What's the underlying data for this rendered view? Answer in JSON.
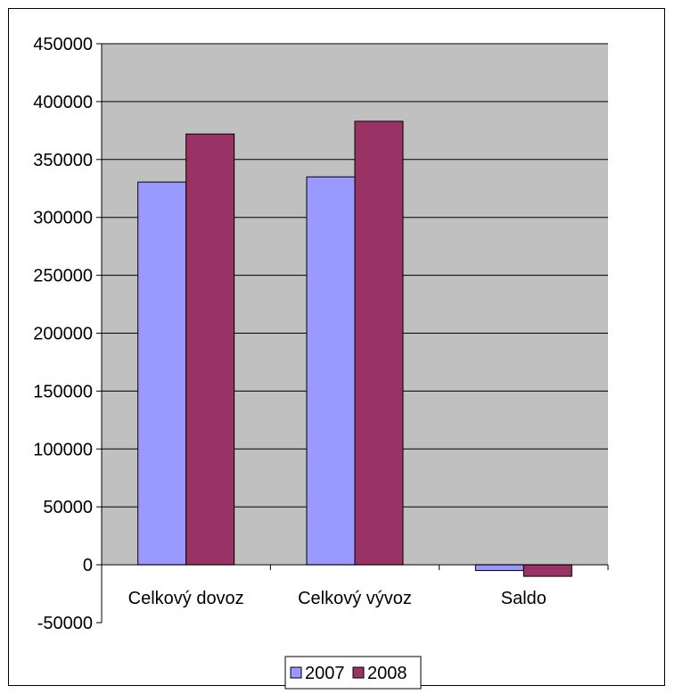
{
  "chart_data": {
    "type": "bar",
    "title": "",
    "xlabel": "",
    "ylabel": "",
    "categories": [
      "Celkový dovoz",
      "Celkový vývoz",
      "Saldo"
    ],
    "series": [
      {
        "name": "2007",
        "values": [
          330500,
          335000,
          -5000
        ],
        "color": "#9999ff"
      },
      {
        "name": "2008",
        "values": [
          372000,
          383000,
          -10000
        ],
        "color": "#993366"
      }
    ],
    "ylim": [
      -50000,
      450000
    ],
    "yticks": [
      -50000,
      0,
      50000,
      100000,
      150000,
      200000,
      250000,
      300000,
      350000,
      400000,
      450000
    ],
    "ytick_labels": [
      "-50000",
      "0",
      "50000",
      "100000",
      "150000",
      "200000",
      "250000",
      "300000",
      "350000",
      "400000",
      "450000"
    ],
    "grid": true,
    "plot_background": "#c0c0c0",
    "legend_position": "bottom"
  }
}
